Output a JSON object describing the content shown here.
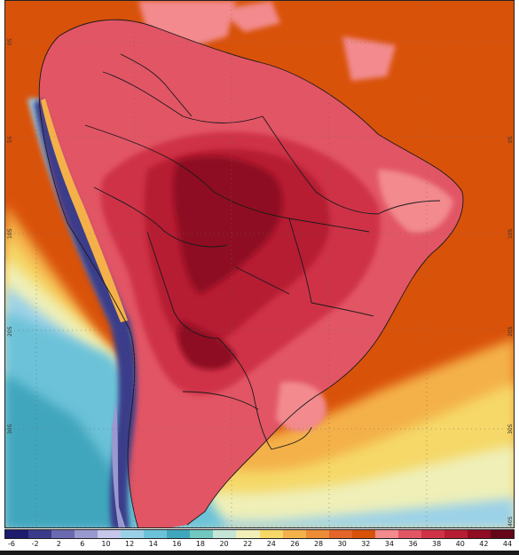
{
  "map": {
    "lat_labels_left": [
      "0S",
      "5S",
      "10S",
      "20S",
      "30S"
    ],
    "lat_labels_right": [
      "0S",
      "10S",
      "20S",
      "30S",
      "40S"
    ]
  },
  "colorbar": {
    "ticks": [
      "-6",
      "-2",
      "2",
      "6",
      "10",
      "12",
      "14",
      "16",
      "18",
      "20",
      "22",
      "24",
      "26",
      "28",
      "30",
      "32",
      "34",
      "36",
      "38",
      "40",
      "42",
      "44"
    ],
    "colors": [
      "#1c1b6e",
      "#3a3c8a",
      "#6b69b0",
      "#9a99cf",
      "#c6c7e9",
      "#9bd1e8",
      "#6cc2d8",
      "#40a6bd",
      "#72c8c0",
      "#c5e6d7",
      "#efefb7",
      "#f5d868",
      "#f4b14a",
      "#ee8b36",
      "#e4642a",
      "#d9520a",
      "#f28a8e",
      "#e25565",
      "#cf3246",
      "#b61d32",
      "#8f0c22",
      "#640617"
    ]
  }
}
